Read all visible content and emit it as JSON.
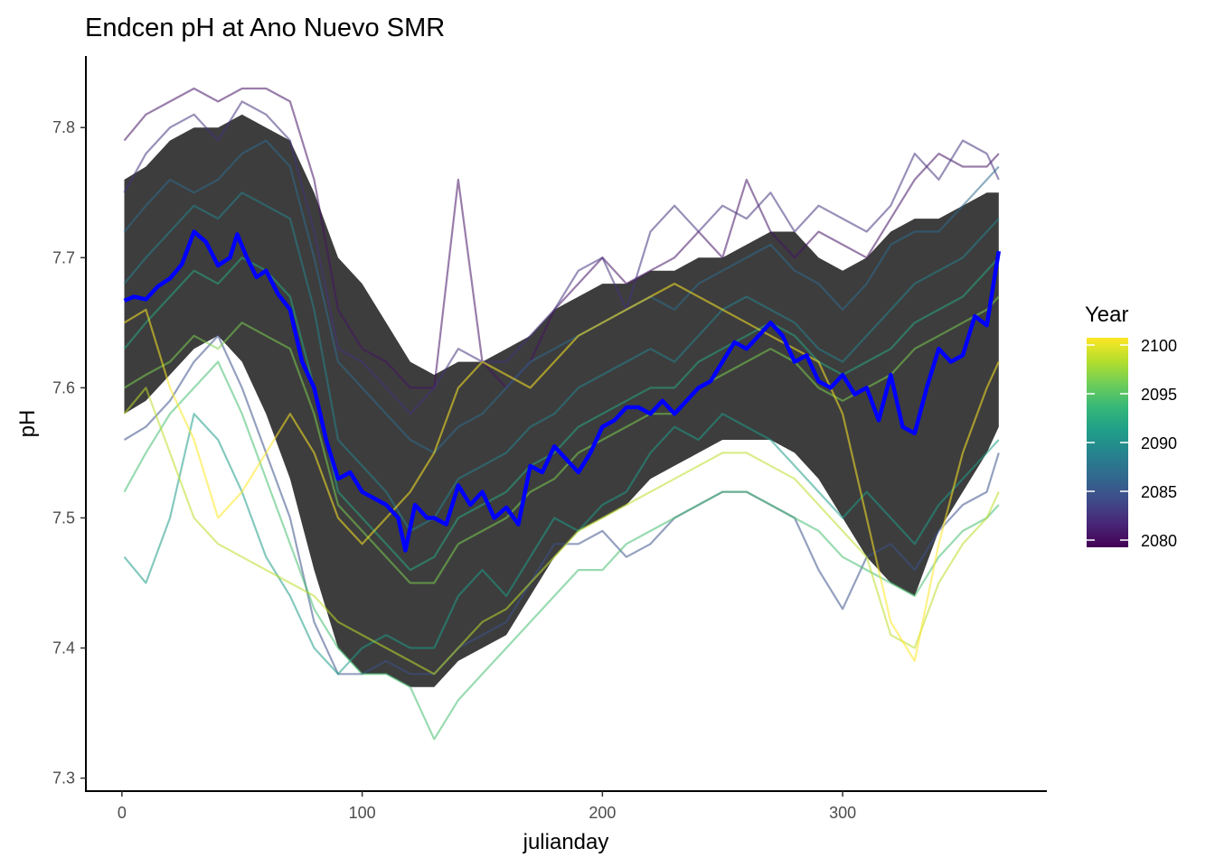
{
  "chart_data": {
    "type": "line",
    "title": "Endcen pH at Ano Nuevo SMR",
    "xlabel": "julianday",
    "ylabel": "pH",
    "xlim": [
      -15,
      385
    ],
    "ylim": [
      7.29,
      7.855
    ],
    "x_ticks": [
      0,
      100,
      200,
      300
    ],
    "y_ticks": [
      7.3,
      7.4,
      7.5,
      7.6,
      7.7,
      7.8
    ],
    "x_tick_labels": [
      "0",
      "100",
      "200",
      "300"
    ],
    "y_tick_labels": [
      "7.3",
      "7.4",
      "7.5",
      "7.6",
      "7.7",
      "7.8"
    ],
    "grid": false,
    "legend": {
      "title": "Year",
      "position": "right",
      "type": "colorbar",
      "range": [
        2080,
        2100
      ],
      "breaks": [
        2080,
        2085,
        2090,
        2095,
        2100
      ],
      "labels": [
        "2080",
        "2085",
        "2090",
        "2095",
        "2100"
      ],
      "palette": [
        "#440154",
        "#482677",
        "#3F4A8A",
        "#31688E",
        "#26828E",
        "#1F9E89",
        "#35B779",
        "#6DCD59",
        "#B4DE2C",
        "#FDE725"
      ]
    },
    "ribbon": {
      "name": "",
      "color": "#333333",
      "x": [
        1,
        10,
        20,
        30,
        40,
        50,
        60,
        70,
        80,
        90,
        100,
        110,
        120,
        130,
        140,
        150,
        160,
        170,
        180,
        190,
        200,
        210,
        220,
        230,
        240,
        250,
        260,
        270,
        280,
        290,
        300,
        310,
        320,
        330,
        340,
        350,
        360,
        365
      ],
      "lower": [
        7.58,
        7.59,
        7.61,
        7.63,
        7.64,
        7.62,
        7.58,
        7.53,
        7.46,
        7.4,
        7.38,
        7.38,
        7.37,
        7.37,
        7.39,
        7.4,
        7.41,
        7.44,
        7.47,
        7.49,
        7.5,
        7.51,
        7.53,
        7.54,
        7.55,
        7.56,
        7.56,
        7.56,
        7.55,
        7.53,
        7.5,
        7.47,
        7.45,
        7.44,
        7.49,
        7.52,
        7.55,
        7.57
      ],
      "upper": [
        7.76,
        7.77,
        7.79,
        7.8,
        7.8,
        7.81,
        7.8,
        7.79,
        7.75,
        7.7,
        7.68,
        7.65,
        7.62,
        7.61,
        7.62,
        7.62,
        7.63,
        7.64,
        7.66,
        7.67,
        7.68,
        7.68,
        7.69,
        7.69,
        7.7,
        7.7,
        7.71,
        7.72,
        7.72,
        7.7,
        7.69,
        7.7,
        7.72,
        7.73,
        7.73,
        7.74,
        7.75,
        7.75
      ]
    },
    "series": [
      {
        "year": 2081,
        "values": [
          7.79,
          7.81,
          7.82,
          7.83,
          7.82,
          7.83,
          7.83,
          7.82,
          7.76,
          7.66,
          7.63,
          7.62,
          7.6,
          7.6,
          7.76,
          7.62,
          7.6,
          7.62,
          7.66,
          7.68,
          7.7,
          7.68,
          7.69,
          7.7,
          7.72,
          7.7,
          7.76,
          7.72,
          7.7,
          7.72,
          7.71,
          7.7,
          7.73,
          7.76,
          7.78,
          7.77,
          7.77,
          7.78
        ]
      },
      {
        "year": 2083,
        "values": [
          7.75,
          7.78,
          7.8,
          7.81,
          7.79,
          7.82,
          7.81,
          7.79,
          7.72,
          7.63,
          7.62,
          7.6,
          7.58,
          7.6,
          7.63,
          7.62,
          7.62,
          7.64,
          7.66,
          7.69,
          7.7,
          7.66,
          7.72,
          7.74,
          7.72,
          7.74,
          7.73,
          7.75,
          7.72,
          7.74,
          7.73,
          7.72,
          7.74,
          7.78,
          7.76,
          7.79,
          7.78,
          7.76
        ]
      },
      {
        "year": 2085,
        "values": [
          7.56,
          7.57,
          7.59,
          7.62,
          7.64,
          7.6,
          7.55,
          7.5,
          7.42,
          7.38,
          7.38,
          7.39,
          7.38,
          7.38,
          7.4,
          7.41,
          7.42,
          7.45,
          7.48,
          7.48,
          7.49,
          7.47,
          7.48,
          7.5,
          7.51,
          7.52,
          7.52,
          7.51,
          7.5,
          7.46,
          7.43,
          7.47,
          7.48,
          7.46,
          7.49,
          7.51,
          7.52,
          7.55
        ]
      },
      {
        "year": 2087,
        "values": [
          7.72,
          7.74,
          7.76,
          7.75,
          7.76,
          7.78,
          7.79,
          7.77,
          7.7,
          7.62,
          7.6,
          7.58,
          7.56,
          7.55,
          7.57,
          7.58,
          7.6,
          7.62,
          7.63,
          7.64,
          7.65,
          7.66,
          7.67,
          7.66,
          7.68,
          7.69,
          7.7,
          7.71,
          7.69,
          7.68,
          7.66,
          7.68,
          7.71,
          7.72,
          7.72,
          7.74,
          7.76,
          7.77
        ]
      },
      {
        "year": 2089,
        "values": [
          7.68,
          7.7,
          7.72,
          7.74,
          7.73,
          7.75,
          7.74,
          7.73,
          7.66,
          7.56,
          7.54,
          7.52,
          7.49,
          7.5,
          7.53,
          7.54,
          7.55,
          7.57,
          7.58,
          7.6,
          7.61,
          7.62,
          7.63,
          7.62,
          7.64,
          7.66,
          7.67,
          7.66,
          7.65,
          7.63,
          7.62,
          7.64,
          7.66,
          7.68,
          7.69,
          7.7,
          7.72,
          7.73
        ]
      },
      {
        "year": 2091,
        "values": [
          7.47,
          7.45,
          7.5,
          7.58,
          7.56,
          7.52,
          7.47,
          7.44,
          7.4,
          7.38,
          7.4,
          7.41,
          7.4,
          7.4,
          7.44,
          7.46,
          7.44,
          7.47,
          7.5,
          7.49,
          7.51,
          7.52,
          7.55,
          7.57,
          7.56,
          7.58,
          7.57,
          7.56,
          7.54,
          7.52,
          7.5,
          7.52,
          7.5,
          7.48,
          7.51,
          7.53,
          7.55,
          7.56
        ]
      },
      {
        "year": 2092,
        "values": [
          7.63,
          7.65,
          7.67,
          7.69,
          7.68,
          7.7,
          7.69,
          7.67,
          7.6,
          7.52,
          7.5,
          7.48,
          7.46,
          7.47,
          7.5,
          7.51,
          7.52,
          7.54,
          7.55,
          7.57,
          7.58,
          7.59,
          7.6,
          7.6,
          7.62,
          7.63,
          7.64,
          7.65,
          7.64,
          7.62,
          7.61,
          7.62,
          7.63,
          7.65,
          7.66,
          7.67,
          7.69,
          7.7
        ]
      },
      {
        "year": 2094,
        "values": [
          7.52,
          7.55,
          7.58,
          7.6,
          7.62,
          7.58,
          7.53,
          7.48,
          7.43,
          7.4,
          7.38,
          7.38,
          7.37,
          7.33,
          7.36,
          7.38,
          7.4,
          7.42,
          7.44,
          7.46,
          7.46,
          7.48,
          7.49,
          7.5,
          7.51,
          7.52,
          7.52,
          7.51,
          7.5,
          7.49,
          7.47,
          7.46,
          7.45,
          7.44,
          7.47,
          7.49,
          7.5,
          7.51
        ]
      },
      {
        "year": 2096,
        "values": [
          7.6,
          7.61,
          7.62,
          7.64,
          7.63,
          7.65,
          7.64,
          7.63,
          7.58,
          7.51,
          7.49,
          7.47,
          7.45,
          7.45,
          7.48,
          7.49,
          7.5,
          7.52,
          7.53,
          7.55,
          7.56,
          7.57,
          7.58,
          7.58,
          7.6,
          7.61,
          7.62,
          7.63,
          7.62,
          7.6,
          7.59,
          7.6,
          7.61,
          7.63,
          7.64,
          7.65,
          7.66,
          7.67
        ]
      },
      {
        "year": 2098,
        "values": [
          7.58,
          7.6,
          7.55,
          7.5,
          7.48,
          7.47,
          7.46,
          7.45,
          7.44,
          7.42,
          7.41,
          7.4,
          7.39,
          7.38,
          7.4,
          7.42,
          7.43,
          7.45,
          7.47,
          7.49,
          7.5,
          7.51,
          7.52,
          7.53,
          7.54,
          7.55,
          7.55,
          7.54,
          7.53,
          7.51,
          7.49,
          7.47,
          7.41,
          7.4,
          7.45,
          7.48,
          7.5,
          7.52
        ]
      },
      {
        "year": 2100,
        "values": [
          7.65,
          7.66,
          7.6,
          7.56,
          7.5,
          7.52,
          7.55,
          7.58,
          7.55,
          7.5,
          7.48,
          7.5,
          7.52,
          7.55,
          7.6,
          7.62,
          7.61,
          7.6,
          7.62,
          7.64,
          7.65,
          7.66,
          7.67,
          7.68,
          7.67,
          7.66,
          7.65,
          7.64,
          7.63,
          7.62,
          7.58,
          7.5,
          7.42,
          7.39,
          7.48,
          7.55,
          7.6,
          7.62
        ]
      }
    ],
    "mean_line": {
      "name": "",
      "color": "#0000FF",
      "x": [
        1,
        5,
        10,
        15,
        20,
        25,
        30,
        35,
        40,
        45,
        48,
        52,
        56,
        60,
        65,
        70,
        75,
        80,
        85,
        90,
        95,
        100,
        105,
        110,
        115,
        118,
        122,
        127,
        130,
        135,
        140,
        145,
        150,
        155,
        160,
        165,
        170,
        175,
        180,
        185,
        190,
        195,
        200,
        205,
        210,
        215,
        220,
        225,
        230,
        235,
        240,
        245,
        250,
        255,
        260,
        265,
        270,
        275,
        280,
        285,
        290,
        295,
        300,
        305,
        310,
        315,
        320,
        325,
        330,
        335,
        340,
        345,
        350,
        355,
        360,
        365
      ],
      "y": [
        7.667,
        7.67,
        7.668,
        7.678,
        7.684,
        7.695,
        7.72,
        7.712,
        7.694,
        7.7,
        7.718,
        7.7,
        7.685,
        7.69,
        7.672,
        7.66,
        7.62,
        7.6,
        7.56,
        7.53,
        7.535,
        7.52,
        7.515,
        7.51,
        7.5,
        7.475,
        7.51,
        7.5,
        7.5,
        7.495,
        7.525,
        7.51,
        7.52,
        7.5,
        7.508,
        7.495,
        7.54,
        7.535,
        7.555,
        7.545,
        7.535,
        7.55,
        7.57,
        7.575,
        7.585,
        7.585,
        7.58,
        7.59,
        7.58,
        7.59,
        7.6,
        7.605,
        7.62,
        7.635,
        7.63,
        7.64,
        7.65,
        7.64,
        7.62,
        7.625,
        7.605,
        7.6,
        7.61,
        7.595,
        7.6,
        7.575,
        7.61,
        7.57,
        7.565,
        7.6,
        7.63,
        7.62,
        7.625,
        7.655,
        7.648,
        7.705
      ]
    }
  }
}
